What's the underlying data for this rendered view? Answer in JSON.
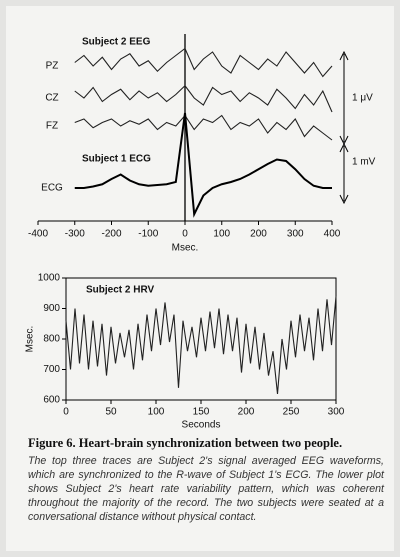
{
  "chart_data": [
    {
      "type": "line",
      "title": "Subject 2 EEG",
      "annotation": "Subject 1 ECG",
      "xlabel": "Msec.",
      "x": [
        -300,
        -275,
        -250,
        -225,
        -200,
        -175,
        -150,
        -125,
        -100,
        -75,
        -50,
        -25,
        0,
        25,
        50,
        75,
        100,
        125,
        150,
        175,
        200,
        225,
        250,
        275,
        300,
        325,
        350,
        375,
        400
      ],
      "xlim": [
        -400,
        400
      ],
      "xticks": [
        -400,
        -300,
        -200,
        -100,
        0,
        100,
        200,
        300,
        400
      ],
      "scale_labels": [
        "1 μV",
        "1 mV"
      ],
      "series": [
        {
          "name": "PZ",
          "color": "#222222",
          "values": [
            0.1,
            0.3,
            0,
            0.25,
            -0.1,
            0.2,
            0.35,
            0,
            0.15,
            -0.15,
            0.1,
            0.3,
            0.5,
            -0.1,
            0.2,
            0.4,
            0,
            -0.2,
            0.3,
            0.1,
            -0.1,
            0.2,
            0,
            0.4,
            0.1,
            -0.2,
            0.1,
            -0.3,
            0
          ]
        },
        {
          "name": "CZ",
          "color": "#222222",
          "values": [
            0.2,
            0,
            0.3,
            -0.1,
            0.1,
            0.25,
            -0.05,
            0.2,
            0,
            0.15,
            -0.1,
            0.1,
            0.35,
            0,
            -0.2,
            0.3,
            0.1,
            0.2,
            -0.1,
            0.15,
            0,
            -0.2,
            0.25,
            0,
            -0.3,
            0.1,
            -0.2,
            0.2,
            -0.4
          ]
        },
        {
          "name": "FZ",
          "color": "#222222",
          "values": [
            0.1,
            0.2,
            -0.05,
            0.1,
            0.2,
            0,
            0.15,
            0.05,
            0.2,
            -0.1,
            0.1,
            0,
            0.3,
            -0.1,
            0.2,
            0.1,
            0.3,
            -0.1,
            0.1,
            0,
            0.2,
            -0.2,
            0.1,
            -0.1,
            0.2,
            -0.3,
            0,
            -0.2,
            -0.4
          ]
        },
        {
          "name": "ECG",
          "color": "#000000",
          "values": [
            0,
            0,
            0.02,
            0.05,
            0.12,
            0.18,
            0.1,
            0.05,
            0.03,
            0.04,
            0.05,
            0.08,
            1.0,
            -0.35,
            -0.1,
            0,
            0.05,
            0.08,
            0.12,
            0.18,
            0.25,
            0.32,
            0.38,
            0.36,
            0.25,
            0.12,
            0.03,
            0,
            0
          ]
        }
      ]
    },
    {
      "type": "line",
      "title": "Subject 2 HRV",
      "xlabel": "Seconds",
      "ylabel": "Msec.",
      "x": [
        0,
        5,
        10,
        15,
        20,
        25,
        30,
        35,
        40,
        45,
        50,
        55,
        60,
        65,
        70,
        75,
        80,
        85,
        90,
        95,
        100,
        105,
        110,
        115,
        120,
        125,
        130,
        135,
        140,
        145,
        150,
        155,
        160,
        165,
        170,
        175,
        180,
        185,
        190,
        195,
        200,
        205,
        210,
        215,
        220,
        225,
        230,
        235,
        240,
        245,
        250,
        255,
        260,
        265,
        270,
        275,
        280,
        285,
        290,
        295,
        300
      ],
      "xlim": [
        0,
        300
      ],
      "xticks": [
        0,
        50,
        100,
        150,
        200,
        250,
        300
      ],
      "ylim": [
        600,
        1000
      ],
      "yticks": [
        600,
        700,
        800,
        900,
        1000
      ],
      "series": [
        {
          "name": "HRV",
          "color": "#222222",
          "values": [
            860,
            700,
            900,
            720,
            880,
            700,
            860,
            710,
            850,
            680,
            840,
            720,
            820,
            740,
            830,
            700,
            850,
            730,
            880,
            760,
            900,
            780,
            920,
            790,
            880,
            640,
            860,
            760,
            840,
            740,
            870,
            760,
            890,
            770,
            900,
            750,
            880,
            760,
            870,
            690,
            850,
            720,
            840,
            700,
            820,
            680,
            760,
            620,
            800,
            700,
            860,
            740,
            880,
            760,
            870,
            730,
            900,
            760,
            930,
            780,
            940
          ]
        }
      ]
    }
  ],
  "caption": {
    "title": "Figure 6. Heart-brain synchronization between two people.",
    "text": "The top three traces are Subject 2's signal averaged EEG waveforms, which are synchronized to the R-wave of Subject 1's ECG. The lower plot shows Subject 2's heart rate variability pattern, which was coherent throughout the majority of the record. The two subjects were seated at a conversational distance without physical contact."
  }
}
